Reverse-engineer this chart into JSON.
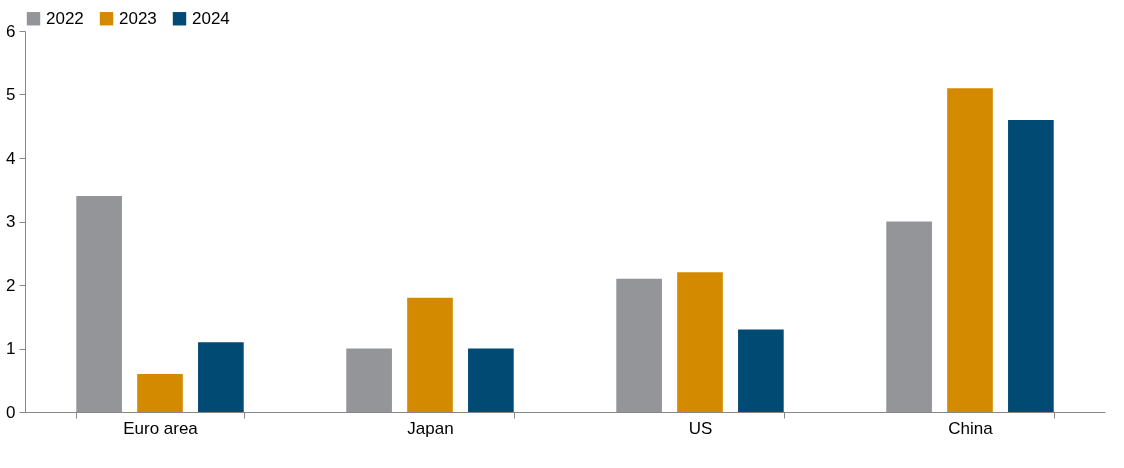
{
  "chart_data": {
    "type": "bar",
    "categories": [
      "Euro area",
      "Japan",
      "US",
      "China"
    ],
    "series": [
      {
        "name": "2022",
        "color": "#939598",
        "values": [
          3.4,
          1.0,
          2.1,
          3.0
        ]
      },
      {
        "name": "2023",
        "color": "#d48a00",
        "values": [
          0.6,
          1.8,
          2.2,
          5.1
        ]
      },
      {
        "name": "2024",
        "color": "#004a73",
        "values": [
          1.1,
          1.0,
          1.3,
          4.6
        ]
      }
    ],
    "ylim": [
      0,
      6
    ],
    "yticks": [
      0,
      1,
      2,
      3,
      4,
      5,
      6
    ],
    "legend": "top"
  }
}
